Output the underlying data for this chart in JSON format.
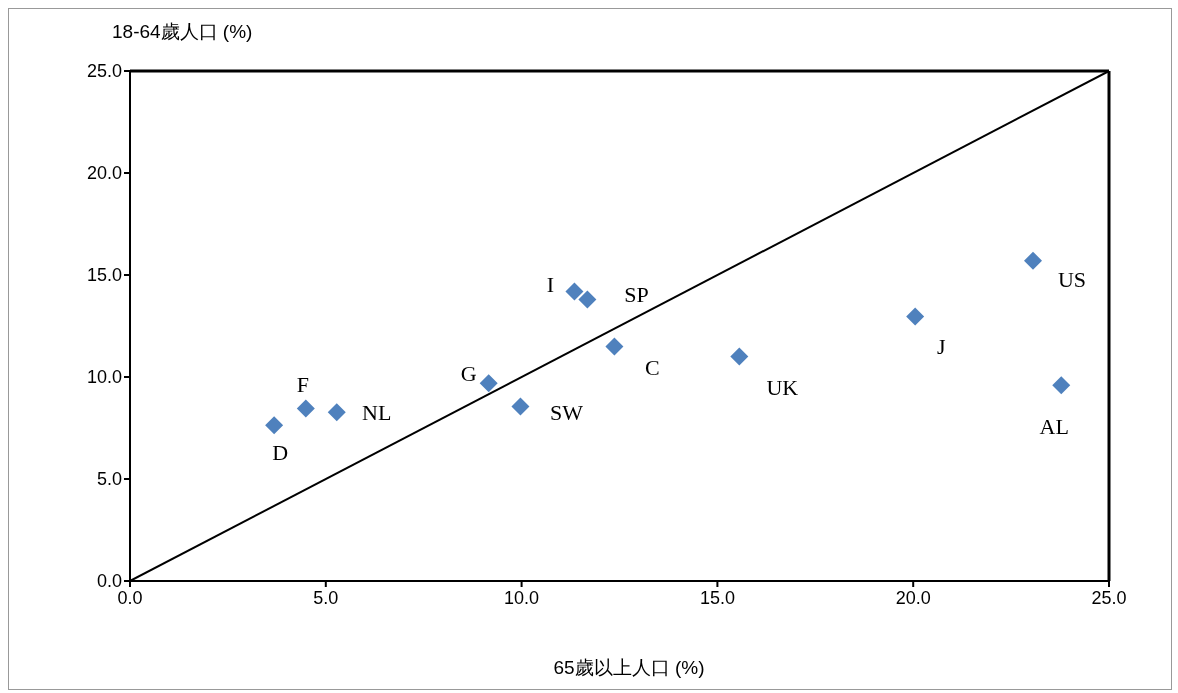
{
  "chart_data": {
    "type": "scatter",
    "xlabel": "65歲以上人口 (%)",
    "ylabel": "18-64歲人口 (%)",
    "xlim": [
      0,
      25
    ],
    "ylim": [
      0,
      25
    ],
    "xticks": [
      {
        "value": 0,
        "label": "0.0"
      },
      {
        "value": 5,
        "label": "5.0"
      },
      {
        "value": 10,
        "label": "10.0"
      },
      {
        "value": 15,
        "label": "15.0"
      },
      {
        "value": 20,
        "label": "20.0"
      },
      {
        "value": 25,
        "label": "25.0"
      }
    ],
    "yticks": [
      {
        "value": 0,
        "label": "0.0"
      },
      {
        "value": 5,
        "label": "5.0"
      },
      {
        "value": 10,
        "label": "10.0"
      },
      {
        "value": 15,
        "label": "15.0"
      },
      {
        "value": 20,
        "label": "20.0"
      },
      {
        "value": 25,
        "label": "25.0"
      }
    ],
    "grid": false,
    "marker": "diamond",
    "series": [
      {
        "color": "#4f81bd",
        "x": [
          3.68,
          4.49,
          5.28,
          9.16,
          9.97,
          11.35,
          11.68,
          12.37,
          15.56,
          20.05,
          23.06,
          23.78
        ],
        "values": [
          7.63,
          8.46,
          8.27,
          9.69,
          8.56,
          14.19,
          13.8,
          11.5,
          11.01,
          12.96,
          15.7,
          9.59
        ]
      },
      {
        "type": "line",
        "color": "#000000",
        "marker": "none",
        "line_style": "solid",
        "x": [
          0,
          25
        ],
        "values": [
          0,
          25
        ]
      }
    ],
    "annotations": [
      {
        "text": "D",
        "x": 3.68,
        "y": 7.63
      },
      {
        "text": "F",
        "x": 4.49,
        "y": 8.46
      },
      {
        "text": "NL",
        "x": 5.28,
        "y": 8.27
      },
      {
        "text": "G",
        "x": 9.16,
        "y": 9.69
      },
      {
        "text": "SW",
        "x": 9.97,
        "y": 8.56
      },
      {
        "text": "I",
        "x": 11.35,
        "y": 14.19
      },
      {
        "text": "SP",
        "x": 11.68,
        "y": 13.8
      },
      {
        "text": "C",
        "x": 12.37,
        "y": 11.5
      },
      {
        "text": "UK",
        "x": 15.56,
        "y": 11.01
      },
      {
        "text": "J",
        "x": 20.05,
        "y": 12.96
      },
      {
        "text": "US",
        "x": 23.06,
        "y": 15.7
      },
      {
        "text": "AL",
        "x": 23.78,
        "y": 9.59
      }
    ]
  }
}
